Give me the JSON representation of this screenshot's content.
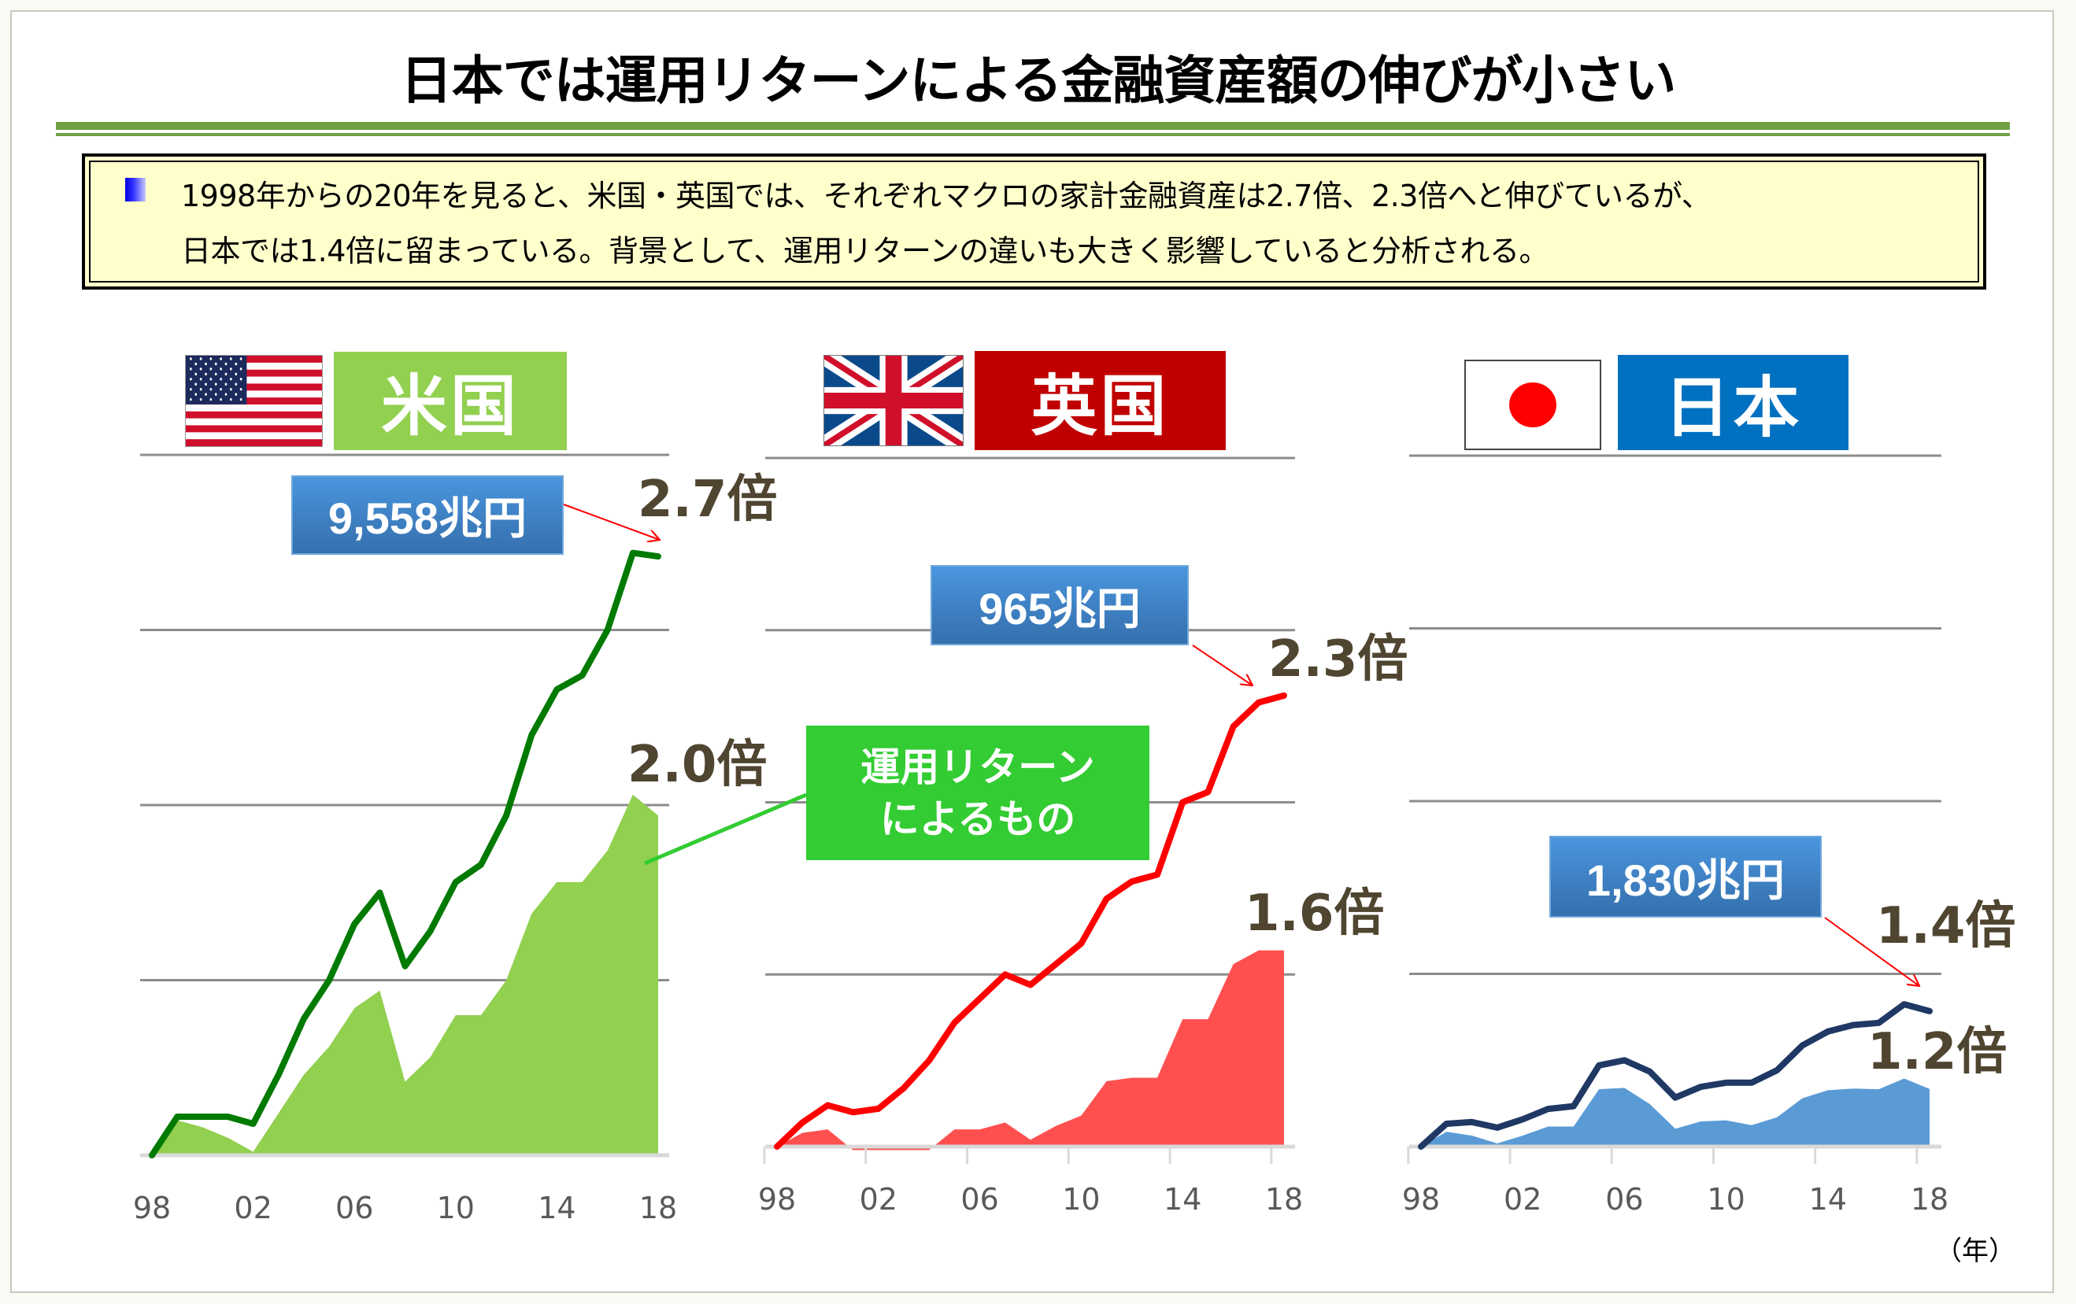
{
  "title": "日本では運用リターンによる金融資産額の伸びが小さい",
  "summary": {
    "lines": [
      "1998年からの20年を見ると、米国・英国では、それぞれマクロの家計金融資産は2.7倍、2.3倍へと伸びているが、",
      "日本では1.4倍に留まっている。背景として、運用リターンの違いも大きく影響していると分析される。"
    ]
  },
  "callout": {
    "line1": "運用リターン",
    "line2": "によるもの",
    "color": "#33CC33"
  },
  "year_unit": "（年）",
  "countries": [
    {
      "key": "us",
      "label": "米国",
      "flag": "us-flag",
      "label_color": "#92D050",
      "total_value": "9,558兆円",
      "total_multiple": "2.7倍",
      "return_multiple": "2.0倍"
    },
    {
      "key": "uk",
      "label": "英国",
      "flag": "uk-flag",
      "label_color": "#C00000",
      "total_value": "965兆円",
      "total_multiple": "2.3倍",
      "return_multiple": "1.6倍"
    },
    {
      "key": "jp",
      "label": "日本",
      "flag": "jp-flag",
      "label_color": "#0070C0",
      "total_value": "1,830兆円",
      "total_multiple": "1.4倍",
      "return_multiple": "1.2倍"
    }
  ],
  "chart_data": [
    {
      "type": "line",
      "title": "米国",
      "x": [
        "98",
        "99",
        "00",
        "01",
        "02",
        "03",
        "04",
        "05",
        "06",
        "07",
        "08",
        "09",
        "10",
        "11",
        "12",
        "13",
        "14",
        "15",
        "16",
        "17",
        "18"
      ],
      "tick_labels": [
        "98",
        "02",
        "06",
        "10",
        "14",
        "18"
      ],
      "ylim": [
        1.0,
        3.0
      ],
      "grid": true,
      "gridlines": [
        1.0,
        1.5,
        2.0,
        2.5,
        3.0
      ],
      "series": [
        {
          "name": "家計金融資産",
          "kind": "line",
          "color": "#007A00",
          "values": [
            1.0,
            1.11,
            1.11,
            1.11,
            1.09,
            1.23,
            1.39,
            1.5,
            1.66,
            1.75,
            1.54,
            1.64,
            1.78,
            1.83,
            1.97,
            2.2,
            2.33,
            2.37,
            2.5,
            2.72,
            2.71
          ]
        },
        {
          "name": "運用リターンによるもの",
          "kind": "area",
          "color": "#92D050",
          "values": [
            1.0,
            1.1,
            1.08,
            1.05,
            1.01,
            1.12,
            1.23,
            1.31,
            1.42,
            1.47,
            1.21,
            1.28,
            1.4,
            1.4,
            1.5,
            1.69,
            1.78,
            1.78,
            1.87,
            2.03,
            1.97
          ]
        }
      ]
    },
    {
      "type": "line",
      "title": "英国",
      "x": [
        "98",
        "99",
        "00",
        "01",
        "02",
        "03",
        "04",
        "05",
        "06",
        "07",
        "08",
        "09",
        "10",
        "11",
        "12",
        "13",
        "14",
        "15",
        "16",
        "17",
        "18"
      ],
      "tick_labels": [
        "98",
        "02",
        "06",
        "10",
        "14",
        "18"
      ],
      "ylim": [
        1.0,
        3.0
      ],
      "grid": true,
      "gridlines": [
        1.0,
        1.5,
        2.0,
        2.5,
        3.0
      ],
      "series": [
        {
          "name": "家計金融資産",
          "kind": "line",
          "color": "#FF0000",
          "values": [
            1.0,
            1.07,
            1.12,
            1.1,
            1.11,
            1.17,
            1.25,
            1.36,
            1.43,
            1.5,
            1.47,
            1.53,
            1.59,
            1.72,
            1.77,
            1.79,
            2.0,
            2.03,
            2.22,
            2.29,
            2.31
          ]
        },
        {
          "name": "運用リターンによるもの",
          "kind": "area",
          "color": "#FF5050",
          "values": [
            1.0,
            1.04,
            1.05,
            0.99,
            0.99,
            0.99,
            0.99,
            1.05,
            1.05,
            1.07,
            1.02,
            1.06,
            1.09,
            1.19,
            1.2,
            1.2,
            1.37,
            1.37,
            1.53,
            1.57,
            1.57
          ]
        }
      ]
    },
    {
      "type": "line",
      "title": "日本",
      "x": [
        "98",
        "99",
        "00",
        "01",
        "02",
        "03",
        "04",
        "05",
        "06",
        "07",
        "08",
        "09",
        "10",
        "11",
        "12",
        "13",
        "14",
        "15",
        "16",
        "17",
        "18"
      ],
      "tick_labels": [
        "98",
        "02",
        "06",
        "10",
        "14",
        "18"
      ],
      "ylim": [
        1.0,
        3.0
      ],
      "grid": true,
      "gridlines": [
        1.0,
        1.5,
        2.0,
        2.5,
        3.0
      ],
      "series": [
        {
          "name": "家計金融資産",
          "kind": "line",
          "color": "#1F3864",
          "values": [
            1.0,
            1.066,
            1.071,
            1.055,
            1.079,
            1.109,
            1.117,
            1.235,
            1.25,
            1.217,
            1.142,
            1.173,
            1.185,
            1.185,
            1.221,
            1.293,
            1.333,
            1.352,
            1.358,
            1.412,
            1.392
          ]
        },
        {
          "name": "運用リターンによるもの",
          "kind": "area",
          "color": "#5B9BD5",
          "values": [
            1.0,
            1.043,
            1.032,
            1.009,
            1.032,
            1.058,
            1.058,
            1.166,
            1.17,
            1.123,
            1.052,
            1.073,
            1.076,
            1.062,
            1.085,
            1.14,
            1.163,
            1.168,
            1.166,
            1.197,
            1.167
          ]
        }
      ]
    }
  ]
}
